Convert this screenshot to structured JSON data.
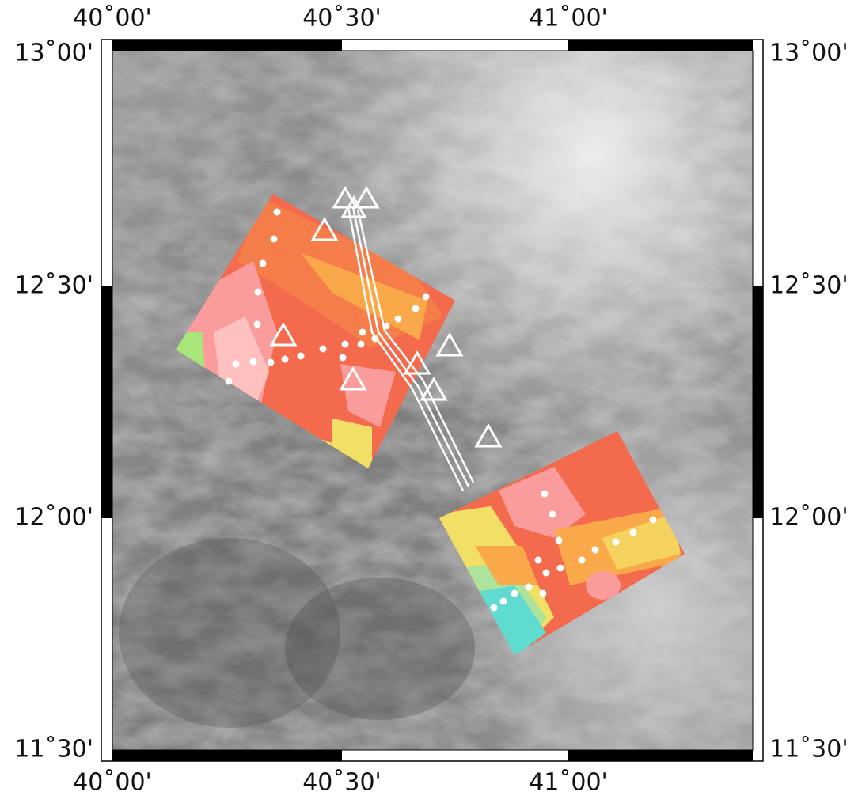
{
  "map": {
    "x_labels": [
      "40˚00'",
      "40˚30'",
      "41˚00'"
    ],
    "y_labels": [
      "13˚00'",
      "12˚30'",
      "12˚00'",
      "11˚30'"
    ]
  }
}
